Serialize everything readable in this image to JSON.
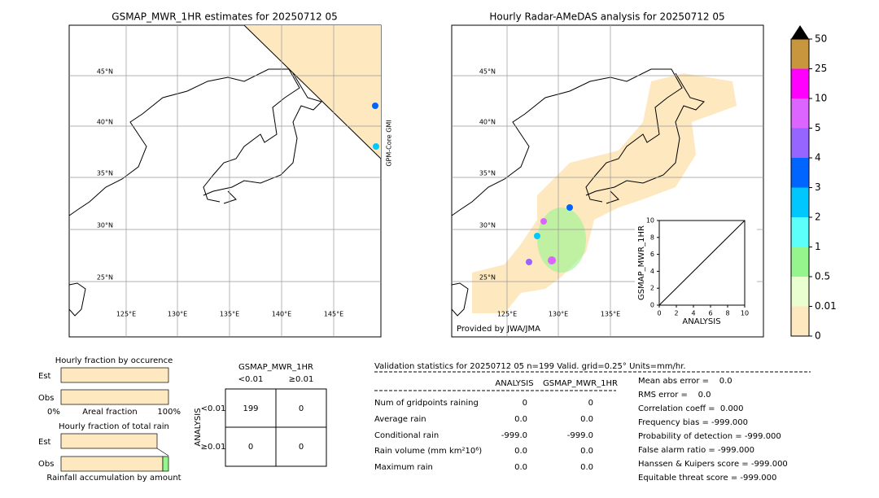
{
  "left_map": {
    "title": "GSMAP_MWR_1HR estimates for 20250712 05",
    "lat_labels": [
      "45°N",
      "40°N",
      "35°N",
      "30°N",
      "25°N"
    ],
    "lon_labels": [
      "125°E",
      "130°E",
      "135°E",
      "140°E",
      "145°E"
    ],
    "swath_label": "GPM-Core GMI"
  },
  "right_map": {
    "title": "Hourly Radar-AMeDAS analysis for 20250712 05",
    "lat_labels": [
      "45°N",
      "40°N",
      "35°N",
      "30°N",
      "25°N"
    ],
    "lon_labels": [
      "125°E",
      "130°E",
      "135°E"
    ],
    "credit": "Provided by JWA/JMA"
  },
  "inset": {
    "xlabel": "ANALYSIS",
    "ylabel": "GSMAP_MWR_1HR",
    "ticks": [
      0,
      2,
      4,
      6,
      8,
      10
    ]
  },
  "colorbar": {
    "levels": [
      0,
      0.01,
      0.5,
      1,
      2,
      3,
      4,
      5,
      10,
      25,
      50
    ],
    "colors": [
      "#fee8c0",
      "#eaffd0",
      "#96f58c",
      "#5cfffa",
      "#00c8ff",
      "#0064ff",
      "#9664ff",
      "#dc64ff",
      "#ff00ff",
      "#c8963c"
    ]
  },
  "fraction": {
    "occurrence_title": "Hourly fraction by occurence",
    "est": "Est",
    "obs": "Obs",
    "axis_left": "0%",
    "axis_mid": "Areal fraction",
    "axis_right": "100%",
    "total_title": "Hourly fraction of total rain",
    "accum_title": "Rainfall accumulation by amount"
  },
  "contingency": {
    "title": "GSMAP_MWR_1HR",
    "col_labels": [
      "<0.01",
      "≥0.01"
    ],
    "row_axis": "ANALYSIS",
    "row_labels": [
      "<0.01",
      "≥0.01"
    ],
    "cells": [
      [
        "199",
        "0"
      ],
      [
        "0",
        "0"
      ]
    ]
  },
  "validation": {
    "header": "Validation statistics for 20250712 05  n=199 Valid. grid=0.25° Units=mm/hr.",
    "columns": [
      "ANALYSIS",
      "GSMAP_MWR_1HR"
    ],
    "rows": [
      {
        "label": "Num of gridpoints raining",
        "values": [
          "0",
          "0"
        ]
      },
      {
        "label": "Average rain",
        "values": [
          "0.0",
          "0.0"
        ]
      },
      {
        "label": "Conditional rain",
        "values": [
          "-999.0",
          "-999.0"
        ]
      },
      {
        "label": "Rain volume (mm km²10⁶)",
        "values": [
          "0.0",
          "0.0"
        ]
      },
      {
        "label": "Maximum rain",
        "values": [
          "0.0",
          "0.0"
        ]
      }
    ],
    "scores": [
      "Mean abs error =    0.0",
      "RMS error =    0.0",
      "Correlation coeff =  0.000",
      "Frequency bias = -999.000",
      "Probability of detection = -999.000",
      "False alarm ratio = -999.000",
      "Hanssen & Kuipers score = -999.000",
      "Equitable threat score = -999.000"
    ]
  }
}
